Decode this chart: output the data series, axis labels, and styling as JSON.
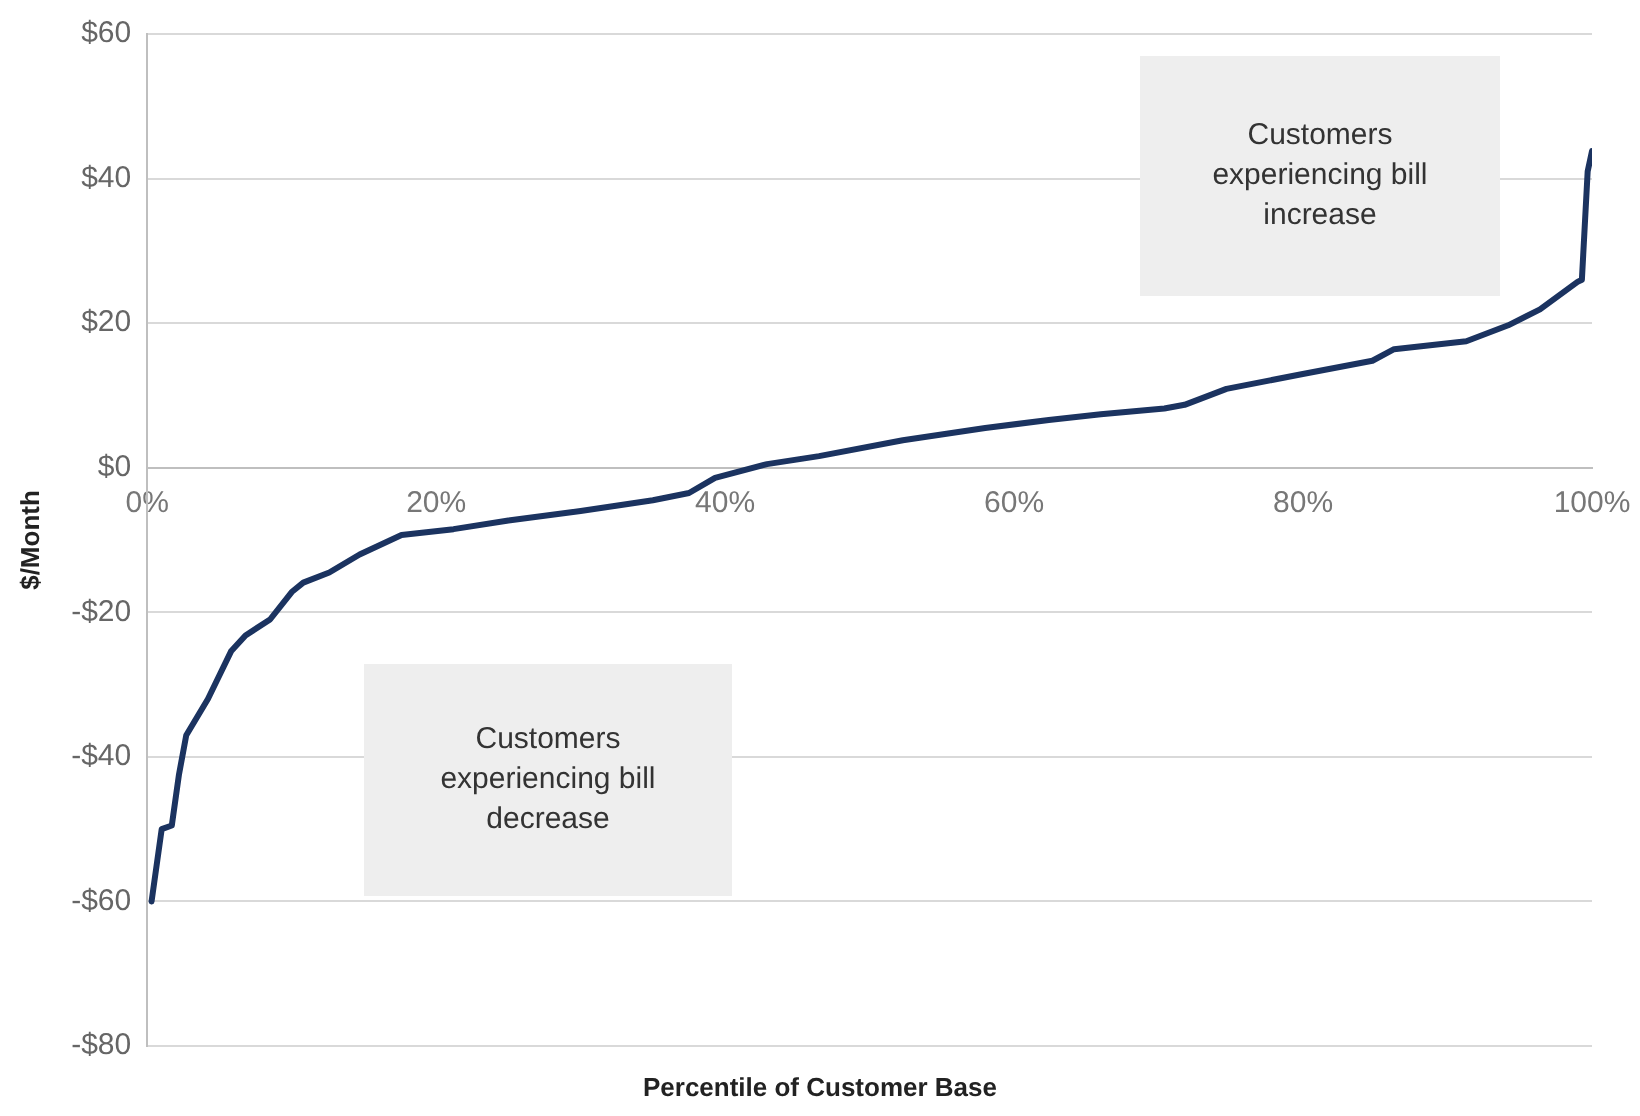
{
  "chart_data": {
    "type": "line",
    "xlabel": "Percentile of Customer Base",
    "ylabel": "$/Month",
    "x": [
      0.3,
      1.0,
      1.7,
      2.2,
      2.7,
      4.2,
      5.8,
      6.8,
      8.5,
      10,
      10.8,
      12.6,
      14.7,
      17.6,
      21.2,
      25,
      30,
      35,
      37.5,
      39.3,
      42.9,
      46.5,
      52.3,
      58,
      62.4,
      66,
      70.4,
      71.8,
      74.7,
      79.8,
      84.8,
      86.3,
      91.3,
      94.2,
      96.4,
      99,
      99.3,
      99.7,
      100
    ],
    "series": [
      {
        "color": "#1b3360",
        "values": [
          -60,
          -50,
          -49.5,
          -42.4,
          -37,
          -32,
          -25.4,
          -23.2,
          -21,
          -17.2,
          -15.9,
          -14.5,
          -12,
          -9.3,
          -8.5,
          -7.3,
          -6,
          -4.5,
          -3.5,
          -1.4,
          0.5,
          1.6,
          3.8,
          5.5,
          6.6,
          7.4,
          8.2,
          8.7,
          10.9,
          12.9,
          14.8,
          16.4,
          17.5,
          19.7,
          21.9,
          25.7,
          26,
          41,
          43.8
        ]
      }
    ],
    "xlim": [
      0,
      100
    ],
    "xticks": [
      {
        "value": 0,
        "label": "0%"
      },
      {
        "value": 20,
        "label": "20%"
      },
      {
        "value": 40,
        "label": "40%"
      },
      {
        "value": 60,
        "label": "60%"
      },
      {
        "value": 80,
        "label": "80%"
      },
      {
        "value": 100,
        "label": "100%"
      }
    ],
    "ylim": [
      -80,
      60
    ],
    "yticks": [
      {
        "value": -80,
        "label": "-$80"
      },
      {
        "value": -60,
        "label": "-$60"
      },
      {
        "value": -40,
        "label": "-$40"
      },
      {
        "value": -20,
        "label": "-$20"
      },
      {
        "value": 0,
        "label": "$0"
      },
      {
        "value": 20,
        "label": "$20"
      },
      {
        "value": 40,
        "label": "$40"
      },
      {
        "value": 60,
        "label": "$60"
      }
    ],
    "grid": "y",
    "legend": false,
    "marker": "none",
    "line_style": "solid",
    "annotations": [
      "Customers experiencing bill increase",
      "Customers experiencing bill decrease"
    ]
  }
}
